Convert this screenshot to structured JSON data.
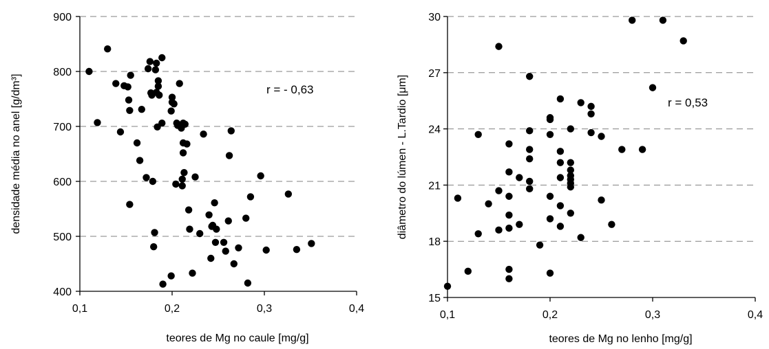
{
  "chart_data": [
    {
      "type": "scatter",
      "xlabel": "teores de Mg no caule [mg/g]",
      "ylabel": "densidade média no anel [g/dm³]",
      "xlim": [
        0.1,
        0.4
      ],
      "ylim": [
        400,
        900
      ],
      "xticks": [
        "0,1",
        "0,2",
        "0,3",
        "0,4"
      ],
      "yticks": [
        "400",
        "500",
        "600",
        "700",
        "800",
        "900"
      ],
      "xtick_values": [
        0.1,
        0.2,
        0.3,
        0.4
      ],
      "ytick_values": [
        400,
        500,
        600,
        700,
        800,
        900
      ],
      "grid": "horizontal dashed",
      "annotation": "r = - 0,63",
      "points": [
        [
          0.11,
          800
        ],
        [
          0.119,
          707
        ],
        [
          0.13,
          841
        ],
        [
          0.139,
          778
        ],
        [
          0.144,
          690
        ],
        [
          0.148,
          774
        ],
        [
          0.152,
          772
        ],
        [
          0.153,
          748
        ],
        [
          0.154,
          729
        ],
        [
          0.154,
          558
        ],
        [
          0.155,
          793
        ],
        [
          0.162,
          670
        ],
        [
          0.165,
          638
        ],
        [
          0.167,
          731
        ],
        [
          0.172,
          607
        ],
        [
          0.174,
          805
        ],
        [
          0.176,
          818
        ],
        [
          0.177,
          761
        ],
        [
          0.178,
          757
        ],
        [
          0.179,
          600
        ],
        [
          0.18,
          481
        ],
        [
          0.181,
          507
        ],
        [
          0.182,
          803
        ],
        [
          0.183,
          815
        ],
        [
          0.183,
          762
        ],
        [
          0.184,
          699
        ],
        [
          0.185,
          783
        ],
        [
          0.185,
          773
        ],
        [
          0.186,
          757
        ],
        [
          0.189,
          825
        ],
        [
          0.189,
          706
        ],
        [
          0.19,
          413
        ],
        [
          0.199,
          728
        ],
        [
          0.199,
          428
        ],
        [
          0.2,
          744
        ],
        [
          0.2,
          753
        ],
        [
          0.202,
          741
        ],
        [
          0.204,
          595
        ],
        [
          0.205,
          706
        ],
        [
          0.206,
          702
        ],
        [
          0.208,
          778
        ],
        [
          0.209,
          700
        ],
        [
          0.21,
          697
        ],
        [
          0.211,
          604
        ],
        [
          0.211,
          592
        ],
        [
          0.212,
          706
        ],
        [
          0.212,
          670
        ],
        [
          0.212,
          652
        ],
        [
          0.213,
          616
        ],
        [
          0.214,
          704
        ],
        [
          0.216,
          668
        ],
        [
          0.218,
          548
        ],
        [
          0.219,
          513
        ],
        [
          0.222,
          433
        ],
        [
          0.225,
          608
        ],
        [
          0.23,
          505
        ],
        [
          0.234,
          686
        ],
        [
          0.24,
          539
        ],
        [
          0.242,
          460
        ],
        [
          0.243,
          518
        ],
        [
          0.244,
          520
        ],
        [
          0.246,
          561
        ],
        [
          0.247,
          489
        ],
        [
          0.248,
          513
        ],
        [
          0.256,
          489
        ],
        [
          0.258,
          473
        ],
        [
          0.261,
          528
        ],
        [
          0.262,
          647
        ],
        [
          0.264,
          692
        ],
        [
          0.267,
          450
        ],
        [
          0.272,
          479
        ],
        [
          0.28,
          533
        ],
        [
          0.282,
          415
        ],
        [
          0.285,
          572
        ],
        [
          0.296,
          610
        ],
        [
          0.302,
          475
        ],
        [
          0.326,
          577
        ],
        [
          0.335,
          476
        ],
        [
          0.351,
          487
        ]
      ]
    },
    {
      "type": "scatter",
      "xlabel": "teores de Mg no lenho [mg/g]",
      "ylabel": "diâmetro do lúmen - L.Tardio [μm]",
      "xlim": [
        0.1,
        0.4
      ],
      "ylim": [
        15,
        30
      ],
      "xticks": [
        "0,1",
        "0,2",
        "0,3",
        "0,4"
      ],
      "yticks": [
        "15",
        "18",
        "21",
        "24",
        "27",
        "30"
      ],
      "xtick_values": [
        0.1,
        0.2,
        0.3,
        0.4
      ],
      "ytick_values": [
        15,
        18,
        21,
        24,
        27,
        30
      ],
      "grid": "horizontal dashed",
      "annotation": "r = 0,53",
      "points": [
        [
          0.1,
          15.6
        ],
        [
          0.11,
          20.3
        ],
        [
          0.12,
          16.4
        ],
        [
          0.13,
          23.7
        ],
        [
          0.13,
          18.4
        ],
        [
          0.14,
          20.0
        ],
        [
          0.15,
          28.4
        ],
        [
          0.15,
          20.7
        ],
        [
          0.15,
          18.6
        ],
        [
          0.16,
          23.2
        ],
        [
          0.16,
          21.7
        ],
        [
          0.16,
          20.4
        ],
        [
          0.16,
          19.4
        ],
        [
          0.16,
          18.7
        ],
        [
          0.16,
          16.5
        ],
        [
          0.16,
          16.0
        ],
        [
          0.17,
          18.9
        ],
        [
          0.17,
          21.4
        ],
        [
          0.18,
          26.8
        ],
        [
          0.18,
          23.9
        ],
        [
          0.18,
          22.9
        ],
        [
          0.18,
          22.4
        ],
        [
          0.18,
          21.2
        ],
        [
          0.18,
          20.8
        ],
        [
          0.19,
          17.8
        ],
        [
          0.2,
          24.6
        ],
        [
          0.2,
          24.5
        ],
        [
          0.2,
          23.7
        ],
        [
          0.2,
          20.4
        ],
        [
          0.2,
          19.2
        ],
        [
          0.2,
          16.3
        ],
        [
          0.21,
          25.6
        ],
        [
          0.21,
          22.8
        ],
        [
          0.21,
          22.2
        ],
        [
          0.21,
          21.4
        ],
        [
          0.21,
          19.9
        ],
        [
          0.21,
          18.8
        ],
        [
          0.22,
          24.0
        ],
        [
          0.22,
          22.2
        ],
        [
          0.22,
          21.8
        ],
        [
          0.22,
          21.5
        ],
        [
          0.22,
          21.3
        ],
        [
          0.22,
          21.1
        ],
        [
          0.22,
          20.9
        ],
        [
          0.22,
          19.5
        ],
        [
          0.23,
          25.4
        ],
        [
          0.23,
          18.2
        ],
        [
          0.24,
          25.2
        ],
        [
          0.24,
          24.8
        ],
        [
          0.24,
          23.8
        ],
        [
          0.25,
          23.6
        ],
        [
          0.25,
          20.2
        ],
        [
          0.26,
          18.9
        ],
        [
          0.27,
          22.9
        ],
        [
          0.28,
          29.8
        ],
        [
          0.29,
          22.9
        ],
        [
          0.3,
          26.2
        ],
        [
          0.31,
          29.8
        ],
        [
          0.33,
          28.7
        ]
      ]
    }
  ]
}
